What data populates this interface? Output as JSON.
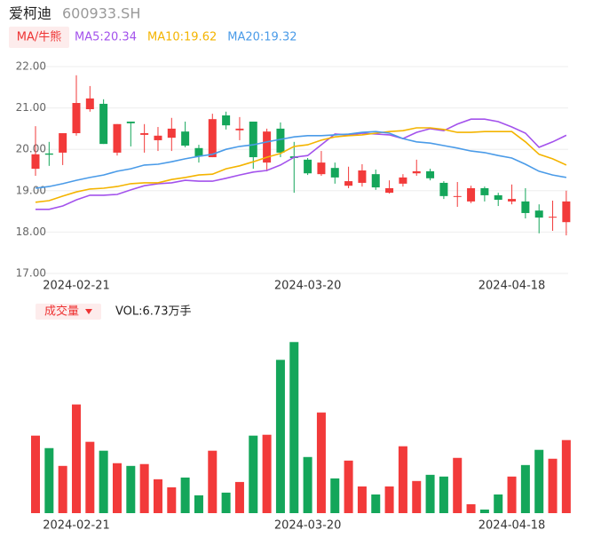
{
  "chart_data": [
    {
      "type": "candlestick",
      "title": "爱柯迪",
      "subtitle": "600933.SH",
      "button": "MA/牛熊",
      "categories": [
        null,
        null,
        null,
        "2024-02-21",
        null,
        null,
        null,
        null,
        null,
        null,
        null,
        null,
        null,
        null,
        null,
        null,
        null,
        null,
        null,
        null,
        "2024-03-20",
        null,
        null,
        null,
        null,
        null,
        null,
        null,
        null,
        null,
        null,
        null,
        null,
        null,
        null,
        "2024-04-18",
        null,
        null,
        null,
        null
      ],
      "open": [
        19.53,
        19.9,
        19.92,
        20.39,
        20.97,
        21.1,
        19.92,
        20.67,
        20.35,
        20.22,
        20.28,
        20.43,
        20.03,
        19.81,
        20.82,
        20.46,
        20.67,
        19.68,
        20.5,
        19.83,
        19.75,
        19.4,
        19.55,
        19.12,
        19.19,
        19.4,
        18.95,
        19.17,
        19.42,
        19.47,
        19.19,
        18.85,
        18.74,
        19.06,
        18.89,
        18.74,
        18.74,
        18.52,
        18.35,
        18.24
      ],
      "close": [
        19.88,
        19.87,
        20.39,
        21.12,
        21.23,
        20.13,
        20.61,
        20.63,
        20.39,
        20.33,
        20.5,
        20.09,
        19.83,
        20.73,
        20.58,
        20.5,
        19.81,
        20.43,
        19.92,
        19.79,
        19.42,
        19.68,
        19.32,
        19.23,
        19.49,
        19.08,
        19.06,
        19.32,
        19.47,
        19.3,
        18.87,
        18.87,
        19.06,
        18.89,
        18.78,
        18.8,
        18.46,
        18.35,
        18.37,
        18.74
      ],
      "high": [
        20.56,
        20.18,
        20.39,
        21.79,
        21.53,
        21.21,
        20.61,
        20.67,
        20.61,
        20.54,
        20.76,
        20.67,
        20.11,
        20.86,
        20.91,
        20.78,
        20.67,
        20.5,
        20.65,
        20.18,
        19.79,
        19.96,
        19.68,
        19.58,
        19.64,
        19.51,
        19.25,
        19.4,
        19.75,
        19.53,
        19.23,
        19.21,
        19.12,
        19.1,
        18.95,
        19.15,
        19.06,
        18.67,
        18.76,
        19.0
      ],
      "low": [
        19.36,
        19.6,
        19.62,
        20.33,
        20.91,
        20.13,
        19.85,
        20.07,
        19.92,
        19.96,
        19.96,
        20.05,
        19.68,
        19.81,
        20.48,
        20.22,
        19.53,
        19.47,
        19.81,
        18.95,
        19.38,
        19.36,
        19.17,
        19.06,
        19.1,
        19.02,
        18.93,
        19.1,
        19.36,
        19.25,
        18.8,
        18.61,
        18.7,
        18.74,
        18.63,
        18.67,
        18.33,
        17.97,
        18.03,
        17.92
      ],
      "up_color": "#f23a3a",
      "down_color": "#14a65a",
      "series": [
        {
          "name": "MA5:20.34",
          "color": "#a352ec",
          "values": [
            18.55,
            18.55,
            18.63,
            18.78,
            18.89,
            18.89,
            18.91,
            19.02,
            19.12,
            19.17,
            19.19,
            19.25,
            19.23,
            19.23,
            19.3,
            19.38,
            19.45,
            19.49,
            19.62,
            19.81,
            19.85,
            20.11,
            20.37,
            20.35,
            20.39,
            20.37,
            20.35,
            20.26,
            20.41,
            20.5,
            20.45,
            20.61,
            20.73,
            20.73,
            20.67,
            20.54,
            20.39,
            20.05,
            20.18,
            20.34
          ]
        },
        {
          "name": "MA10:19.62",
          "color": "#f4b400",
          "values": [
            18.72,
            18.76,
            18.87,
            18.97,
            19.04,
            19.06,
            19.1,
            19.17,
            19.19,
            19.19,
            19.27,
            19.32,
            19.38,
            19.4,
            19.53,
            19.6,
            19.7,
            19.81,
            19.9,
            20.07,
            20.11,
            20.22,
            20.3,
            20.33,
            20.35,
            20.39,
            20.43,
            20.45,
            20.52,
            20.52,
            20.48,
            20.41,
            20.41,
            20.43,
            20.43,
            20.43,
            20.18,
            19.88,
            19.77,
            19.62
          ]
        },
        {
          "name": "MA20:19.32",
          "color": "#4a9be8",
          "values": [
            19.06,
            19.1,
            19.17,
            19.25,
            19.32,
            19.38,
            19.47,
            19.53,
            19.62,
            19.64,
            19.7,
            19.77,
            19.83,
            19.88,
            20.0,
            20.07,
            20.11,
            20.18,
            20.24,
            20.3,
            20.33,
            20.33,
            20.35,
            20.37,
            20.41,
            20.43,
            20.39,
            20.26,
            20.18,
            20.15,
            20.09,
            20.03,
            19.96,
            19.92,
            19.85,
            19.79,
            19.64,
            19.47,
            19.38,
            19.32
          ]
        }
      ],
      "ylim": [
        17,
        22
      ],
      "yticks": [
        {
          "value": 17,
          "label": "17.00"
        },
        {
          "value": 18,
          "label": "18.00"
        },
        {
          "value": 19,
          "label": "19.00"
        },
        {
          "value": 20,
          "label": "20.00"
        },
        {
          "value": 21,
          "label": "21.00"
        },
        {
          "value": 22,
          "label": "22.00"
        }
      ],
      "grid": true
    },
    {
      "type": "bar",
      "title": "成交量",
      "subtitle": "VOL:6.73万手",
      "categories": [
        null,
        null,
        null,
        "2024-02-21",
        null,
        null,
        null,
        null,
        null,
        null,
        null,
        null,
        null,
        null,
        null,
        null,
        null,
        null,
        null,
        null,
        "2024-03-20",
        null,
        null,
        null,
        null,
        null,
        null,
        null,
        null,
        null,
        null,
        null,
        null,
        null,
        null,
        "2024-04-18",
        null,
        null,
        null,
        null
      ],
      "values": [
        7.14,
        5.99,
        4.35,
        10.01,
        6.57,
        5.75,
        4.6,
        4.35,
        4.52,
        3.12,
        2.38,
        3.28,
        1.64,
        5.75,
        1.89,
        2.87,
        7.14,
        7.22,
        14.12,
        15.76,
        5.17,
        9.27,
        3.2,
        4.84,
        2.46,
        1.72,
        2.46,
        6.16,
        2.96,
        3.53,
        3.37,
        5.09,
        0.82,
        0.33,
        1.72,
        3.37,
        4.43,
        5.83,
        5.01,
        6.73
      ],
      "ylim": [
        0,
        17.5
      ]
    }
  ]
}
